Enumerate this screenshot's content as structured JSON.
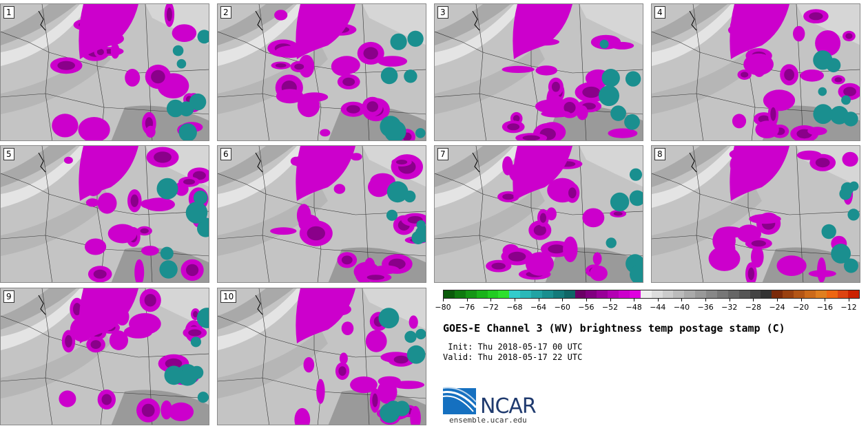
{
  "panels": [
    {
      "label": "1"
    },
    {
      "label": "2"
    },
    {
      "label": "3"
    },
    {
      "label": "4"
    },
    {
      "label": "5"
    },
    {
      "label": "6"
    },
    {
      "label": "7"
    },
    {
      "label": "8"
    },
    {
      "label": "9"
    },
    {
      "label": "10"
    }
  ],
  "colorbar": {
    "colors": [
      "#0a5a0a",
      "#0f7a0f",
      "#159615",
      "#1ab31a",
      "#22cc22",
      "#2ee02e",
      "#33cccc",
      "#2ab8b8",
      "#22a3a3",
      "#1a8f8f",
      "#137a7a",
      "#0f6666",
      "#6b0066",
      "#800080",
      "#990099",
      "#b300b3",
      "#cc00cc",
      "#e000e0",
      "#eeeeee",
      "#dddddd",
      "#cccccc",
      "#bbbbbb",
      "#aaaaaa",
      "#999999",
      "#888888",
      "#777777",
      "#666666",
      "#555555",
      "#444444",
      "#333333",
      "#7a2a0a",
      "#99400f",
      "#b35515",
      "#cc6a1a",
      "#e07f20",
      "#ee6611",
      "#dd4411",
      "#cc2200"
    ],
    "tick_labels": [
      "−80",
      "−76",
      "−72",
      "−68",
      "−64",
      "−60",
      "−56",
      "−52",
      "−48",
      "−44",
      "−40",
      "−36",
      "−32",
      "−28",
      "−24",
      "−20",
      "−16",
      "−12"
    ]
  },
  "title": "GOES-E Channel 3 (WV) brightness temp postage stamp (C)",
  "init_line": " Init: Thu 2018-05-17 00 UTC",
  "valid_line": "Valid: Thu 2018-05-17 22 UTC",
  "logo": {
    "text": "NCAR",
    "url": "ensemble.ucar.edu",
    "colors": {
      "blue": "#1570c0",
      "navy": "#1f3a6e"
    }
  }
}
